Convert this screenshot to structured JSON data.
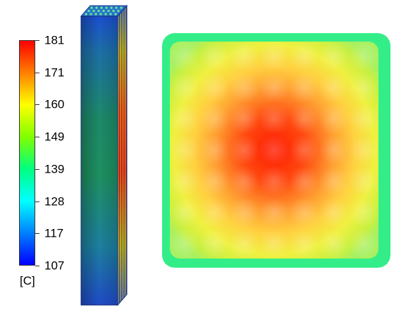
{
  "colorbar": {
    "ticks": [
      "181",
      "171",
      "160",
      "149",
      "139",
      "128",
      "117",
      "107"
    ],
    "unit": "[C]",
    "colors": [
      "#ff0000",
      "#ff8000",
      "#ffff00",
      "#80ff00",
      "#00ff80",
      "#00ffff",
      "#0080ff",
      "#0000ff"
    ]
  },
  "cross_section": {
    "grid_rows": 7,
    "grid_cols": 7,
    "border_color": "#33ee88"
  },
  "bundle": {
    "rods": 8
  }
}
